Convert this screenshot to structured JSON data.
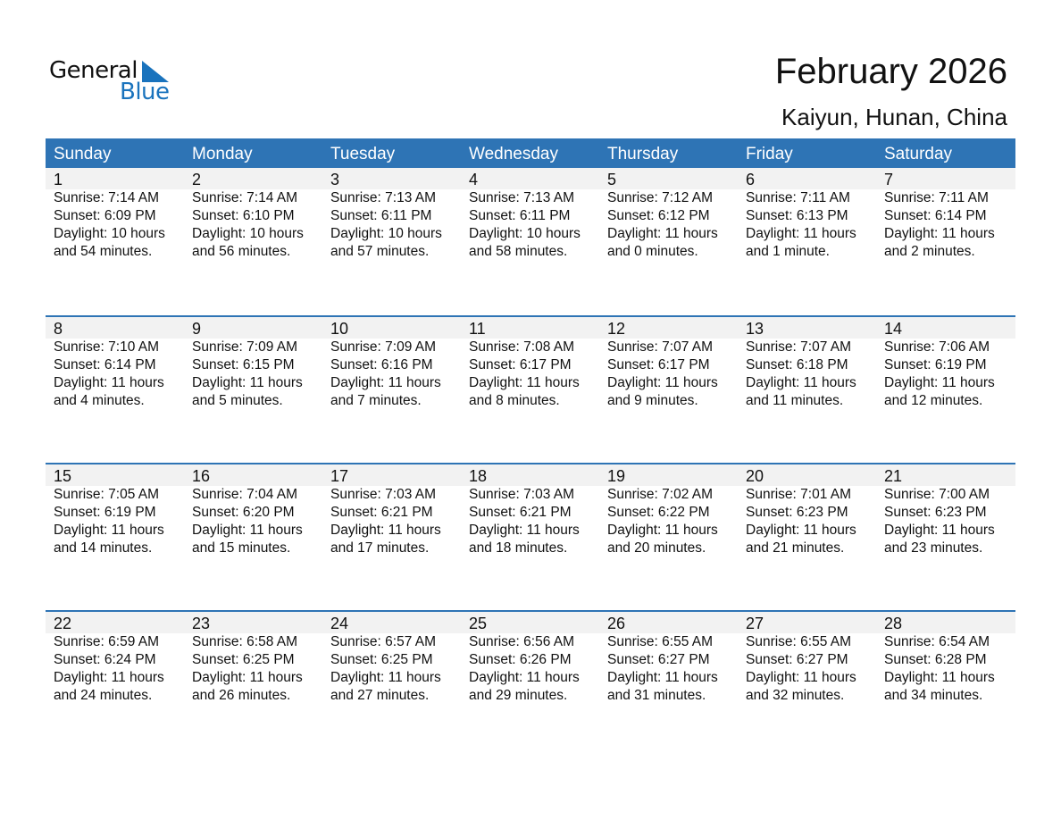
{
  "logo": {
    "text_top": "General",
    "text_bottom": "Blue"
  },
  "title": "February 2026",
  "location": "Kaiyun, Hunan, China",
  "colors": {
    "header": "#2e74b5",
    "band": "#f2f2f2",
    "logo_blue": "#1a73bd"
  },
  "weekdays": [
    "Sunday",
    "Monday",
    "Tuesday",
    "Wednesday",
    "Thursday",
    "Friday",
    "Saturday"
  ],
  "weeks": [
    [
      {
        "day": "1",
        "sunrise": "Sunrise: 7:14 AM",
        "sunset": "Sunset: 6:09 PM",
        "daylight": "Daylight: 10 hours",
        "minutes": "and 54 minutes."
      },
      {
        "day": "2",
        "sunrise": "Sunrise: 7:14 AM",
        "sunset": "Sunset: 6:10 PM",
        "daylight": "Daylight: 10 hours",
        "minutes": "and 56 minutes."
      },
      {
        "day": "3",
        "sunrise": "Sunrise: 7:13 AM",
        "sunset": "Sunset: 6:11 PM",
        "daylight": "Daylight: 10 hours",
        "minutes": "and 57 minutes."
      },
      {
        "day": "4",
        "sunrise": "Sunrise: 7:13 AM",
        "sunset": "Sunset: 6:11 PM",
        "daylight": "Daylight: 10 hours",
        "minutes": "and 58 minutes."
      },
      {
        "day": "5",
        "sunrise": "Sunrise: 7:12 AM",
        "sunset": "Sunset: 6:12 PM",
        "daylight": "Daylight: 11 hours",
        "minutes": "and 0 minutes."
      },
      {
        "day": "6",
        "sunrise": "Sunrise: 7:11 AM",
        "sunset": "Sunset: 6:13 PM",
        "daylight": "Daylight: 11 hours",
        "minutes": "and 1 minute."
      },
      {
        "day": "7",
        "sunrise": "Sunrise: 7:11 AM",
        "sunset": "Sunset: 6:14 PM",
        "daylight": "Daylight: 11 hours",
        "minutes": "and 2 minutes."
      }
    ],
    [
      {
        "day": "8",
        "sunrise": "Sunrise: 7:10 AM",
        "sunset": "Sunset: 6:14 PM",
        "daylight": "Daylight: 11 hours",
        "minutes": "and 4 minutes."
      },
      {
        "day": "9",
        "sunrise": "Sunrise: 7:09 AM",
        "sunset": "Sunset: 6:15 PM",
        "daylight": "Daylight: 11 hours",
        "minutes": "and 5 minutes."
      },
      {
        "day": "10",
        "sunrise": "Sunrise: 7:09 AM",
        "sunset": "Sunset: 6:16 PM",
        "daylight": "Daylight: 11 hours",
        "minutes": "and 7 minutes."
      },
      {
        "day": "11",
        "sunrise": "Sunrise: 7:08 AM",
        "sunset": "Sunset: 6:17 PM",
        "daylight": "Daylight: 11 hours",
        "minutes": "and 8 minutes."
      },
      {
        "day": "12",
        "sunrise": "Sunrise: 7:07 AM",
        "sunset": "Sunset: 6:17 PM",
        "daylight": "Daylight: 11 hours",
        "minutes": "and 9 minutes."
      },
      {
        "day": "13",
        "sunrise": "Sunrise: 7:07 AM",
        "sunset": "Sunset: 6:18 PM",
        "daylight": "Daylight: 11 hours",
        "minutes": "and 11 minutes."
      },
      {
        "day": "14",
        "sunrise": "Sunrise: 7:06 AM",
        "sunset": "Sunset: 6:19 PM",
        "daylight": "Daylight: 11 hours",
        "minutes": "and 12 minutes."
      }
    ],
    [
      {
        "day": "15",
        "sunrise": "Sunrise: 7:05 AM",
        "sunset": "Sunset: 6:19 PM",
        "daylight": "Daylight: 11 hours",
        "minutes": "and 14 minutes."
      },
      {
        "day": "16",
        "sunrise": "Sunrise: 7:04 AM",
        "sunset": "Sunset: 6:20 PM",
        "daylight": "Daylight: 11 hours",
        "minutes": "and 15 minutes."
      },
      {
        "day": "17",
        "sunrise": "Sunrise: 7:03 AM",
        "sunset": "Sunset: 6:21 PM",
        "daylight": "Daylight: 11 hours",
        "minutes": "and 17 minutes."
      },
      {
        "day": "18",
        "sunrise": "Sunrise: 7:03 AM",
        "sunset": "Sunset: 6:21 PM",
        "daylight": "Daylight: 11 hours",
        "minutes": "and 18 minutes."
      },
      {
        "day": "19",
        "sunrise": "Sunrise: 7:02 AM",
        "sunset": "Sunset: 6:22 PM",
        "daylight": "Daylight: 11 hours",
        "minutes": "and 20 minutes."
      },
      {
        "day": "20",
        "sunrise": "Sunrise: 7:01 AM",
        "sunset": "Sunset: 6:23 PM",
        "daylight": "Daylight: 11 hours",
        "minutes": "and 21 minutes."
      },
      {
        "day": "21",
        "sunrise": "Sunrise: 7:00 AM",
        "sunset": "Sunset: 6:23 PM",
        "daylight": "Daylight: 11 hours",
        "minutes": "and 23 minutes."
      }
    ],
    [
      {
        "day": "22",
        "sunrise": "Sunrise: 6:59 AM",
        "sunset": "Sunset: 6:24 PM",
        "daylight": "Daylight: 11 hours",
        "minutes": "and 24 minutes."
      },
      {
        "day": "23",
        "sunrise": "Sunrise: 6:58 AM",
        "sunset": "Sunset: 6:25 PM",
        "daylight": "Daylight: 11 hours",
        "minutes": "and 26 minutes."
      },
      {
        "day": "24",
        "sunrise": "Sunrise: 6:57 AM",
        "sunset": "Sunset: 6:25 PM",
        "daylight": "Daylight: 11 hours",
        "minutes": "and 27 minutes."
      },
      {
        "day": "25",
        "sunrise": "Sunrise: 6:56 AM",
        "sunset": "Sunset: 6:26 PM",
        "daylight": "Daylight: 11 hours",
        "minutes": "and 29 minutes."
      },
      {
        "day": "26",
        "sunrise": "Sunrise: 6:55 AM",
        "sunset": "Sunset: 6:27 PM",
        "daylight": "Daylight: 11 hours",
        "minutes": "and 31 minutes."
      },
      {
        "day": "27",
        "sunrise": "Sunrise: 6:55 AM",
        "sunset": "Sunset: 6:27 PM",
        "daylight": "Daylight: 11 hours",
        "minutes": "and 32 minutes."
      },
      {
        "day": "28",
        "sunrise": "Sunrise: 6:54 AM",
        "sunset": "Sunset: 6:28 PM",
        "daylight": "Daylight: 11 hours",
        "minutes": "and 34 minutes."
      }
    ]
  ]
}
